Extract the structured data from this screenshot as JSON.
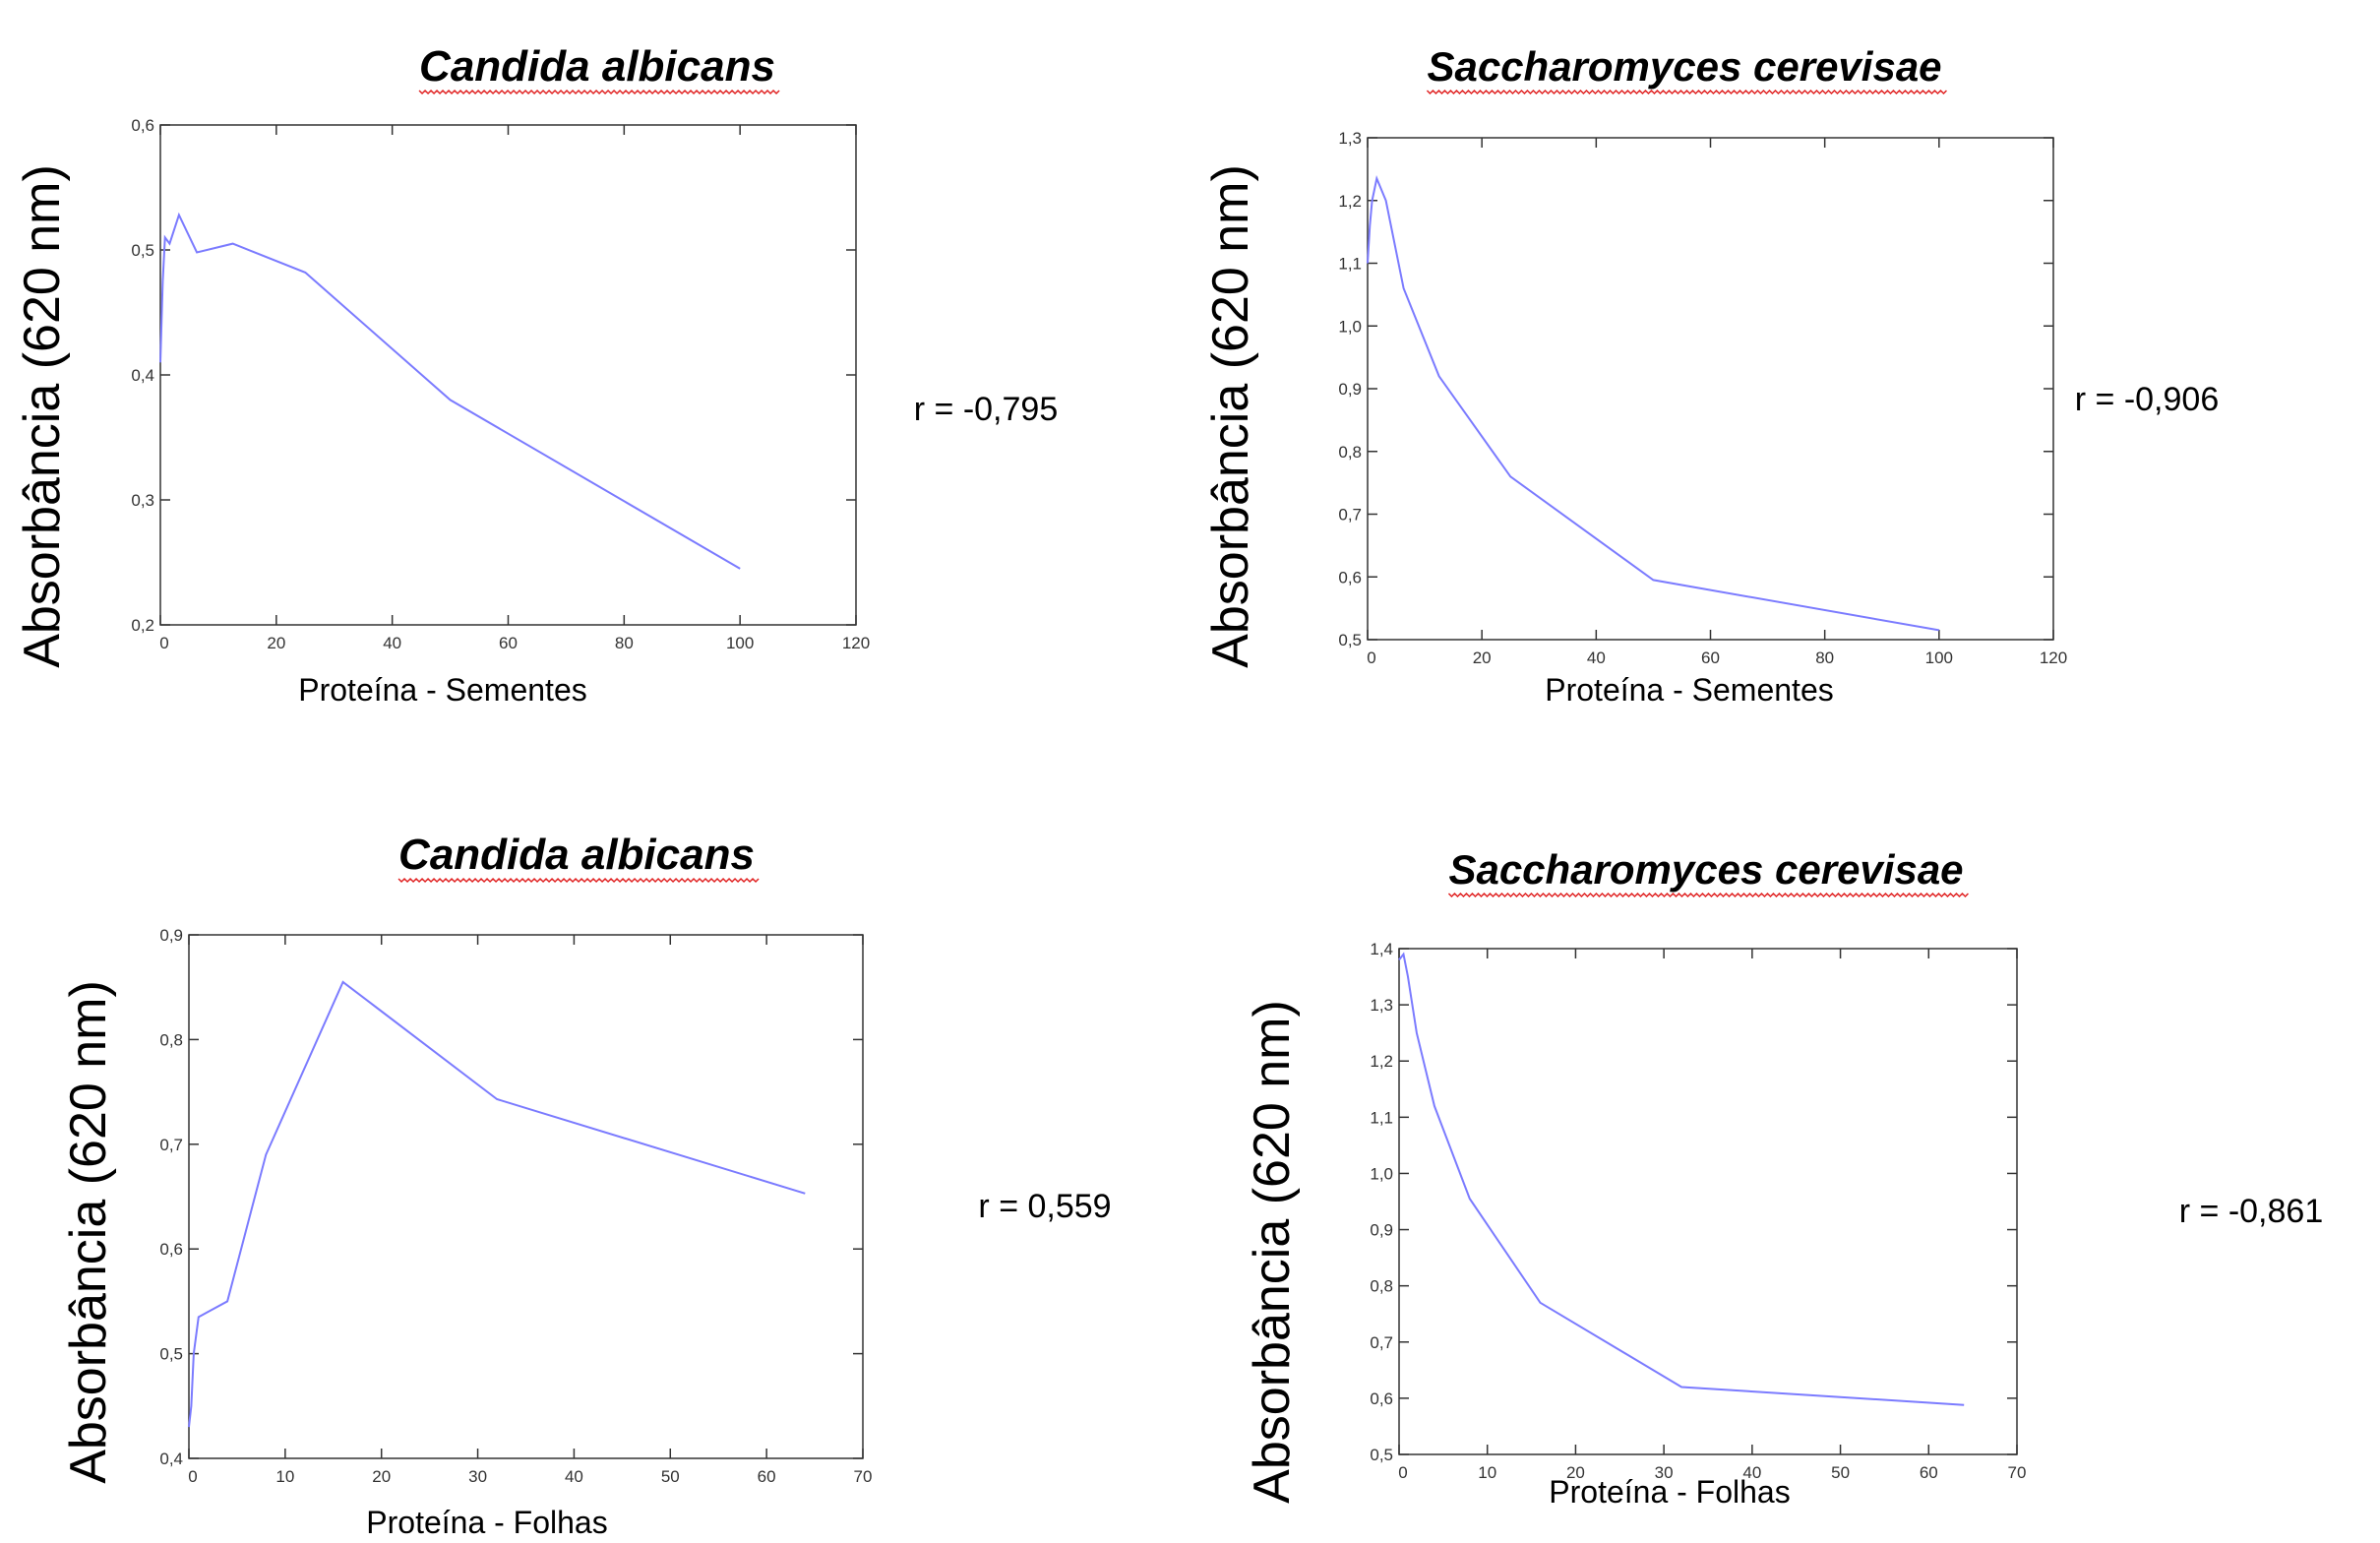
{
  "chart_data": [
    {
      "type": "line",
      "title": [
        "Candida",
        "albicans"
      ],
      "xlabel": "Proteína - Sementes",
      "ylabel": "Absorbância (620 nm)",
      "xlim": [
        0,
        120
      ],
      "ylim": [
        0.2,
        0.6
      ],
      "xticks": [
        "0",
        "20",
        "40",
        "60",
        "80",
        "100",
        "120"
      ],
      "yticks": [
        "0,2",
        "0,3",
        "0,4",
        "0,5",
        "0,6"
      ],
      "grid": false,
      "line_color": "#7b7bff",
      "correlation_label": "r = -0,795",
      "x": [
        0,
        0.4,
        0.8,
        1.6,
        3.2,
        6.3,
        12.5,
        25,
        50,
        100
      ],
      "y": [
        0.41,
        0.475,
        0.51,
        0.505,
        0.528,
        0.498,
        0.505,
        0.482,
        0.38,
        0.245
      ]
    },
    {
      "type": "line",
      "title": [
        "Saccharomyces",
        "cerevisae"
      ],
      "xlabel": "Proteína - Sementes",
      "ylabel": "Absorbância (620 nm)",
      "xlim": [
        0,
        120
      ],
      "ylim": [
        0.5,
        1.3
      ],
      "xticks": [
        "0",
        "20",
        "40",
        "60",
        "80",
        "100",
        "120"
      ],
      "yticks": [
        "0,5",
        "0,6",
        "0,7",
        "0,8",
        "0,9",
        "1,0",
        "1,1",
        "1,2",
        "1,3"
      ],
      "grid": false,
      "line_color": "#7b7bff",
      "correlation_label": "r = -0,906",
      "x": [
        0,
        0.4,
        0.8,
        1.6,
        3.2,
        6.3,
        12.5,
        25,
        50,
        100
      ],
      "y": [
        1.1,
        1.16,
        1.2,
        1.235,
        1.2,
        1.06,
        0.92,
        0.76,
        0.595,
        0.515
      ]
    },
    {
      "type": "line",
      "title": [
        "Candida",
        "albicans"
      ],
      "xlabel": "Proteína - Folhas",
      "ylabel": "Absorbância (620 nm)",
      "xlim": [
        0,
        70
      ],
      "ylim": [
        0.4,
        0.9
      ],
      "xticks": [
        "0",
        "10",
        "20",
        "30",
        "40",
        "50",
        "60",
        "70"
      ],
      "yticks": [
        "0,4",
        "0,5",
        "0,6",
        "0,7",
        "0,8",
        "0,9"
      ],
      "grid": false,
      "line_color": "#7b7bff",
      "correlation_label": "r = 0,559",
      "x": [
        0,
        0.25,
        0.5,
        1,
        2,
        4,
        8,
        16,
        32,
        64
      ],
      "y": [
        0.43,
        0.45,
        0.5,
        0.535,
        0.54,
        0.55,
        0.69,
        0.855,
        0.743,
        0.653
      ]
    },
    {
      "type": "line",
      "title": [
        "Saccharomyces",
        "cerevisae"
      ],
      "xlabel": "Proteína - Folhas",
      "ylabel": "Absorbância (620 nm)",
      "xlim": [
        0,
        70
      ],
      "ylim": [
        0.5,
        1.4
      ],
      "xticks": [
        "0",
        "10",
        "20",
        "30",
        "40",
        "50",
        "60",
        "70"
      ],
      "yticks": [
        "0,5",
        "0,6",
        "0,7",
        "0,8",
        "0,9",
        "1,0",
        "1,1",
        "1,2",
        "1,3",
        "1,4"
      ],
      "grid": false,
      "line_color": "#7b7bff",
      "correlation_label": "r = -0,861",
      "x": [
        0,
        0.5,
        1,
        2,
        4,
        8,
        16,
        32,
        64
      ],
      "y": [
        1.38,
        1.39,
        1.35,
        1.25,
        1.12,
        0.955,
        0.77,
        0.62,
        0.588
      ]
    }
  ]
}
